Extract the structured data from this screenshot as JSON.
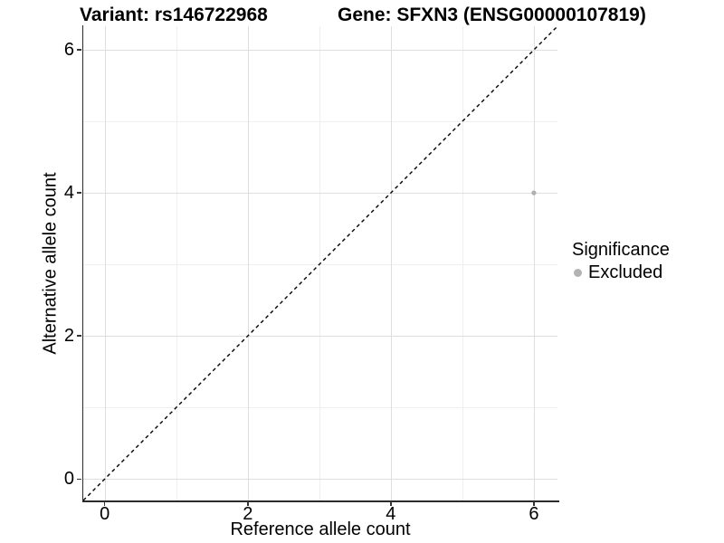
{
  "header": {
    "variant_title": "Variant: rs146722968",
    "gene_title": "Gene: SFXN3 (ENSG00000107819)"
  },
  "chart_data": {
    "type": "scatter",
    "xlabel": "Reference allele count",
    "ylabel": "Alternative allele count",
    "xlim": [
      -0.3,
      6.33
    ],
    "ylim": [
      -0.3,
      6.33
    ],
    "major_ticks": [
      0,
      2,
      4,
      6
    ],
    "minor_gridlines": [
      1,
      3,
      5
    ],
    "grid": true,
    "identity_line": {
      "style": "dashed",
      "color": "#000000",
      "slope": 1,
      "intercept": 0
    },
    "series": [
      {
        "name": "Excluded",
        "color": "#b0b0b0",
        "points": [
          {
            "x": 6,
            "y": 4
          }
        ]
      }
    ],
    "legend": {
      "title": "Significance",
      "position": "right",
      "entries": [
        {
          "label": "Excluded",
          "color": "#b3b3b3"
        }
      ]
    }
  },
  "colors": {
    "major_grid": "#dedede",
    "minor_grid": "#efefef",
    "axis_line": "#2b2b2b",
    "point": "#b0b0b0"
  }
}
